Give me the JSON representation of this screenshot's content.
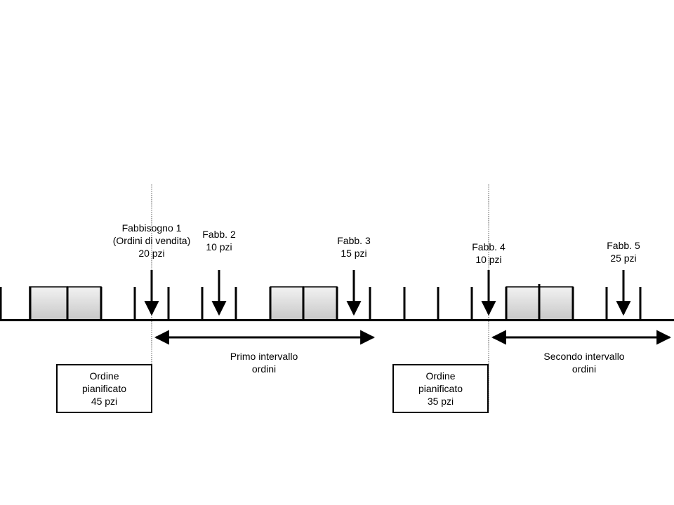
{
  "demands": [
    {
      "lines": [
        "Fabbisogno 1",
        "(Ordini di vendita)",
        "20 pzi"
      ]
    },
    {
      "lines": [
        "Fabb. 2",
        "10 pzi"
      ]
    },
    {
      "lines": [
        "Fabb. 3",
        "15 pzi"
      ]
    },
    {
      "lines": [
        "Fabb. 4",
        "10 pzi"
      ]
    },
    {
      "lines": [
        "Fabb. 5",
        "25 pzi"
      ]
    }
  ],
  "intervals": [
    {
      "lines": [
        "Primo intervallo",
        "ordini"
      ]
    },
    {
      "lines": [
        "Secondo intervallo",
        "ordini"
      ]
    }
  ],
  "planned_orders": [
    {
      "lines": [
        "Ordine",
        "pianificato",
        "45 pzi"
      ]
    },
    {
      "lines": [
        "Ordine",
        "pianificato",
        "35 pzi"
      ]
    }
  ],
  "colors": {
    "line": "#000000",
    "block_fill_top": "#f2f2f2",
    "block_fill_bottom": "#c8c8c8",
    "guide": "#555555"
  }
}
